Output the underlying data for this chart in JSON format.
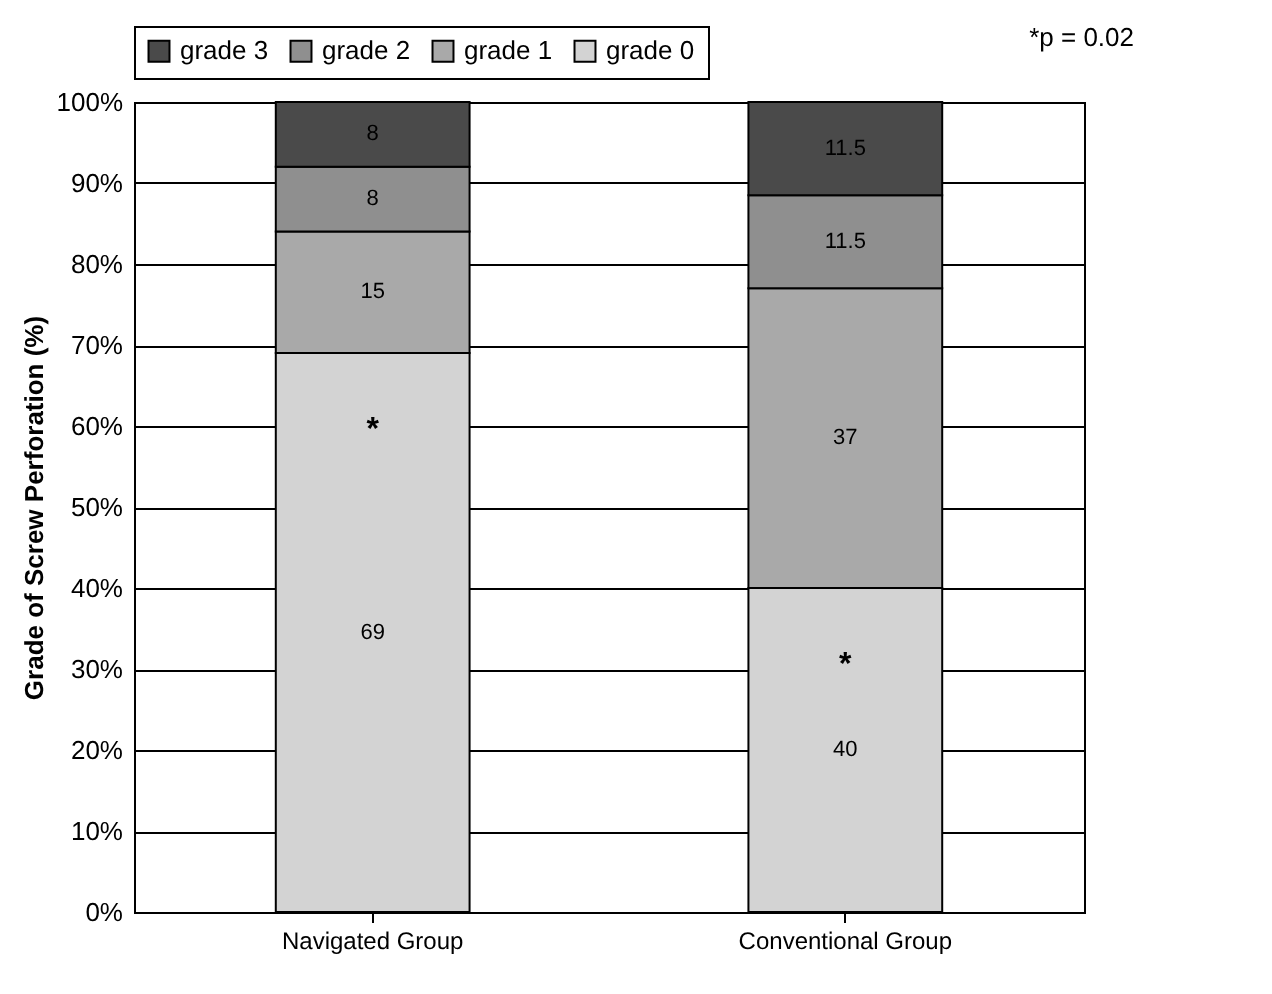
{
  "chart_data": {
    "type": "bar",
    "stacked": true,
    "ylabel": "Grade of Screw Perforation (%)",
    "categories": [
      "Navigated Group",
      "Conventional Group"
    ],
    "series": [
      {
        "name": "grade 0",
        "color": "#d3d3d3",
        "values": [
          69,
          40
        ]
      },
      {
        "name": "grade 1",
        "color": "#a9a9a9",
        "values": [
          15,
          37
        ]
      },
      {
        "name": "grade 2",
        "color": "#8f8f8f",
        "values": [
          8,
          11.5
        ]
      },
      {
        "name": "grade 3",
        "color": "#4a4a4a",
        "values": [
          8,
          11.5
        ]
      }
    ],
    "ylim": [
      0,
      100
    ],
    "yticks": [
      {
        "value": 0,
        "label": "0%"
      },
      {
        "value": 10,
        "label": "10%"
      },
      {
        "value": 20,
        "label": "20%"
      },
      {
        "value": 30,
        "label": "30%"
      },
      {
        "value": 40,
        "label": "40%"
      },
      {
        "value": 50,
        "label": "50%"
      },
      {
        "value": 60,
        "label": "60%"
      },
      {
        "value": 70,
        "label": "70%"
      },
      {
        "value": 80,
        "label": "80%"
      },
      {
        "value": 90,
        "label": "90%"
      },
      {
        "value": 100,
        "label": "100%"
      }
    ],
    "grid": "y",
    "legend": "top",
    "data_labels": true,
    "annotations": [
      "*p = 0.02",
      "*",
      "*"
    ]
  }
}
